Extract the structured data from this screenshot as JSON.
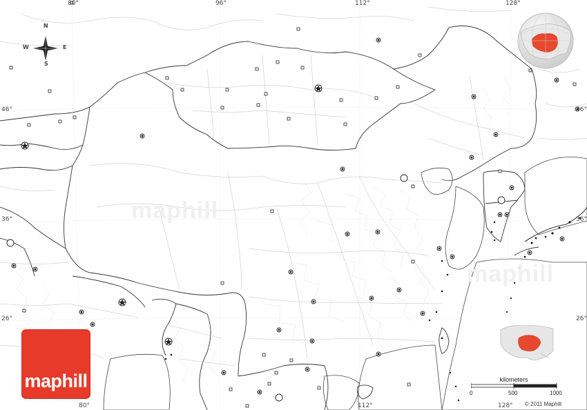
{
  "map": {
    "longitude_labels": [
      "80°",
      "96°",
      "112°",
      "128°"
    ],
    "latitude_labels": [
      "46°",
      "36°",
      "26°"
    ],
    "compass": {
      "n": "N",
      "s": "S",
      "e": "E",
      "w": "W"
    },
    "scale": {
      "title": "kilometers",
      "ticks": [
        "0",
        "500",
        "1000"
      ]
    },
    "copyright": "© 2011 Maphill",
    "logo": "maphill",
    "watermark": "maphill",
    "highlight_color": "#e8482d",
    "logo_color": "#e63a2b"
  }
}
